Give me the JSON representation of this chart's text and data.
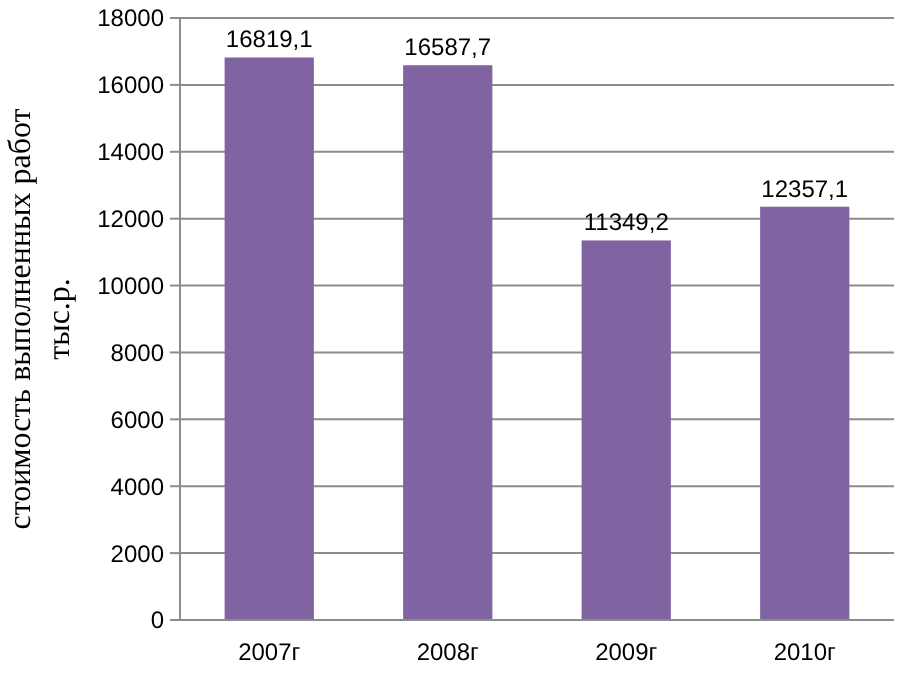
{
  "chart_data": {
    "type": "bar",
    "ylabel": "стоимость выполненных работ тыс.р.",
    "categories": [
      "2007г",
      "2008г",
      "2009г",
      "2010г"
    ],
    "values": [
      16819.1,
      16587.7,
      11349.2,
      12357.1
    ],
    "value_labels": [
      "16819,1",
      "16587,7",
      "11349,2",
      "12357,1"
    ],
    "color": "#8064a2",
    "ylim": [
      0,
      18000
    ],
    "yticks": [
      0,
      2000,
      4000,
      6000,
      8000,
      10000,
      12000,
      14000,
      16000,
      18000
    ],
    "grid": "y"
  }
}
